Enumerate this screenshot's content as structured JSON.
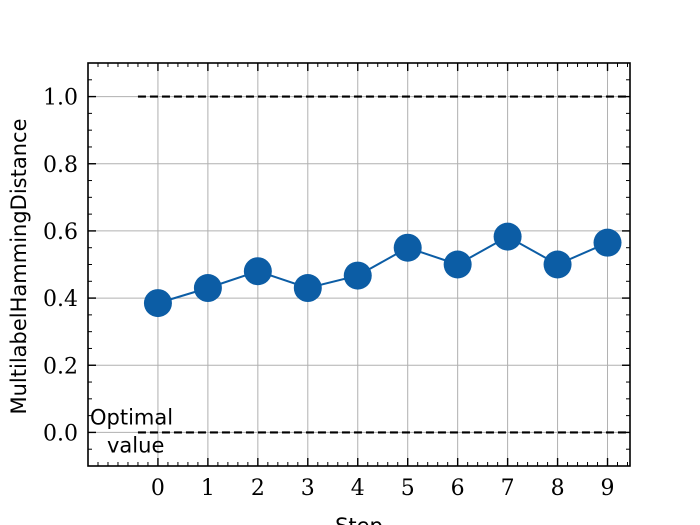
{
  "chart_data": {
    "type": "line",
    "title": "",
    "xlabel": "Step",
    "ylabel": "MultilabelHammingDistance",
    "x": [
      0,
      1,
      2,
      3,
      4,
      5,
      6,
      7,
      8,
      9
    ],
    "series": [
      {
        "values": [
          0.385,
          0.43,
          0.48,
          0.43,
          0.467,
          0.55,
          0.5,
          0.583,
          0.5,
          0.565
        ],
        "color": "#0C5DA5",
        "marker": "circle"
      }
    ],
    "reference_lines": [
      {
        "y": 1.0,
        "style": "dashed",
        "color": "#000000"
      },
      {
        "y": 0.0,
        "style": "dashed",
        "color": "#000000",
        "label": "Optimal\nvalue"
      }
    ],
    "xlim": [
      -1.4,
      9.45
    ],
    "ylim": [
      -0.1,
      1.1
    ],
    "xticks": [
      "0",
      "1",
      "2",
      "3",
      "4",
      "5",
      "6",
      "7",
      "8",
      "9"
    ],
    "yticks": [
      "0.0",
      "0.2",
      "0.4",
      "0.6",
      "0.8",
      "1.0"
    ],
    "grid": true,
    "annotation_line1": "Optimal",
    "annotation_line2": "value"
  }
}
